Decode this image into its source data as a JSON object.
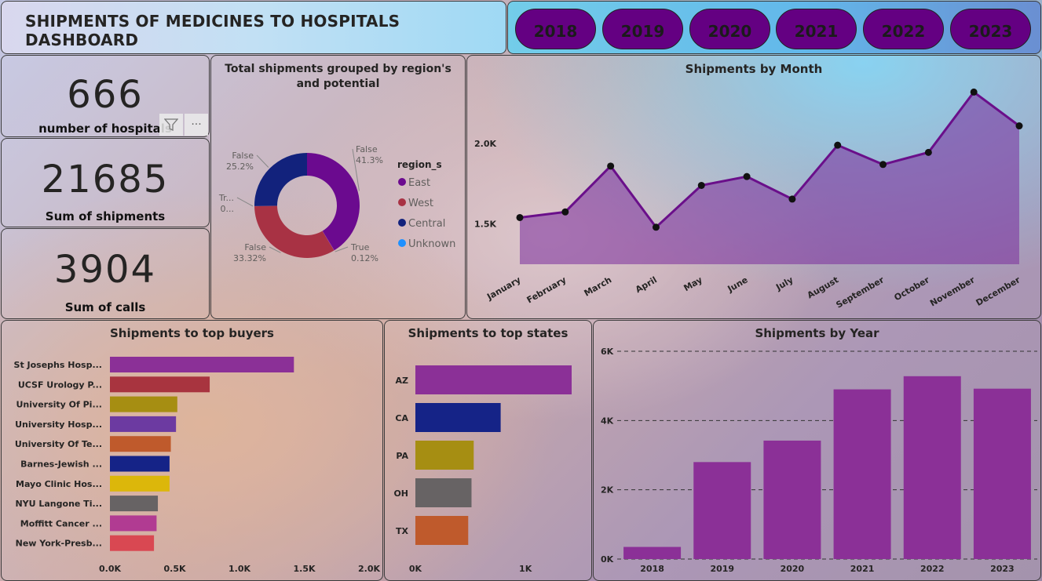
{
  "header": {
    "title": "SHIPMENTS OF MEDICINES TO HOSPITALS DASHBOARD"
  },
  "year_filter": {
    "years": [
      "2018",
      "2019",
      "2020",
      "2021",
      "2022",
      "2023"
    ]
  },
  "kpis": {
    "hospitals": {
      "value": "666",
      "label": "number of hospitals"
    },
    "shipments": {
      "value": "21685",
      "label": "Sum of shipments"
    },
    "calls": {
      "value": "3904",
      "label": "Sum of calls"
    }
  },
  "visual_tools": {
    "filter_icon": "filter-icon",
    "more_icon": "more-options-icon"
  },
  "chart_data": [
    {
      "type": "pie",
      "title": "Total shipments grouped by region's and potential",
      "legend_title": "region_s",
      "legend": [
        {
          "name": "East",
          "color": "#6b0a8f"
        },
        {
          "name": "West",
          "color": "#a83244"
        },
        {
          "name": "Central",
          "color": "#12227c"
        },
        {
          "name": "Unknown",
          "color": "#1e90ff"
        }
      ],
      "slices": [
        {
          "region": "East",
          "label": "False",
          "value": 41.3,
          "text": "41.3%",
          "color": "#6b0a8f"
        },
        {
          "region": "East",
          "label": "True",
          "value": 0.12,
          "text": "0.12%",
          "color": "#8a2fb0"
        },
        {
          "region": "West",
          "label": "False",
          "value": 33.32,
          "text": "33.32%",
          "color": "#a83244"
        },
        {
          "region": "West",
          "label": "Tr...",
          "value": 0.06,
          "text": "0...",
          "color": "#c2485a"
        },
        {
          "region": "Central",
          "label": "False",
          "value": 25.2,
          "text": "25.2%",
          "color": "#12227c"
        }
      ]
    },
    {
      "type": "area",
      "title": "Shipments by Month",
      "categories": [
        "January",
        "February",
        "March",
        "April",
        "May",
        "June",
        "July",
        "August",
        "September",
        "October",
        "November",
        "December"
      ],
      "values": [
        1540,
        1575,
        1860,
        1480,
        1740,
        1795,
        1655,
        1990,
        1870,
        1945,
        2320,
        2110
      ],
      "ylim": [
        1250,
        2400
      ],
      "yticks": [
        1500,
        2000
      ],
      "ytick_labels": [
        "1.5K",
        "2.0K"
      ],
      "color": "#6a0f8a"
    },
    {
      "type": "bar",
      "orientation": "horizontal",
      "title": "Shipments to top buyers",
      "categories": [
        "St Josephs Hosp...",
        "UCSF Urology P...",
        "University Of Pi...",
        "University Hosp...",
        "University Of Te...",
        "Barnes-Jewish ...",
        "Mayo Clinic Hos...",
        "NYU Langone Ti...",
        "Moffitt Cancer ...",
        "New York-Presb..."
      ],
      "values": [
        1420,
        770,
        520,
        510,
        470,
        460,
        460,
        370,
        360,
        340
      ],
      "colors": [
        "#8b3097",
        "#a8343f",
        "#a68e12",
        "#6c3aa1",
        "#bf5a2c",
        "#152387",
        "#dcb70a",
        "#676364",
        "#b13b92",
        "#d94852"
      ],
      "xlim": [
        0,
        2000
      ],
      "xticks": [
        0,
        500,
        1000,
        1500,
        2000
      ],
      "xtick_labels": [
        "0.0K",
        "0.5K",
        "1.0K",
        "1.5K",
        "2.0K"
      ]
    },
    {
      "type": "bar",
      "orientation": "horizontal",
      "title": "Shipments to top states",
      "categories": [
        "AZ",
        "CA",
        "PA",
        "OH",
        "TX"
      ],
      "values": [
        1420,
        775,
        530,
        510,
        480
      ],
      "colors": [
        "#8b3097",
        "#152387",
        "#a68e12",
        "#676364",
        "#bf5a2c"
      ],
      "xlim": [
        0,
        1420
      ],
      "xticks": [
        0,
        1000
      ],
      "xtick_labels": [
        "0K",
        "1K"
      ]
    },
    {
      "type": "bar",
      "title": "Shipments by Year",
      "categories": [
        "2018",
        "2019",
        "2020",
        "2021",
        "2022",
        "2023"
      ],
      "values": [
        350,
        2800,
        3420,
        4900,
        5280,
        4920
      ],
      "ylim": [
        0,
        6000
      ],
      "yticks": [
        0,
        2000,
        4000,
        6000
      ],
      "ytick_labels": [
        "0K",
        "2K",
        "4K",
        "6K"
      ],
      "color": "#8b3097"
    }
  ]
}
